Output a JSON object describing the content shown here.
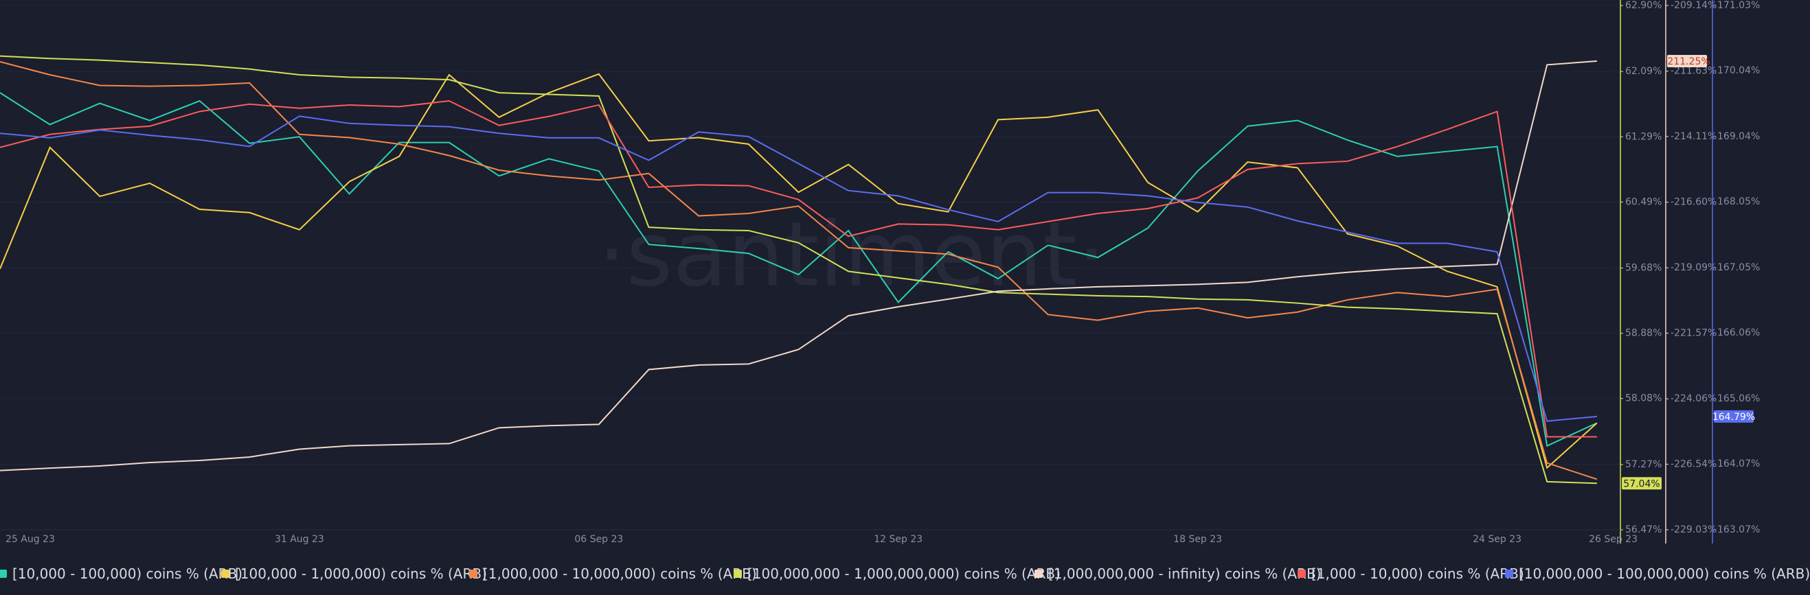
{
  "chart_data": {
    "type": "line",
    "watermark": "·santiment·",
    "x": [
      0,
      1,
      2,
      3,
      4,
      5,
      6,
      7,
      8,
      9,
      10,
      11,
      12,
      13,
      14,
      15,
      16,
      17,
      18,
      19,
      20,
      21,
      22,
      23,
      24,
      25,
      26,
      27,
      28,
      29,
      30,
      31,
      32
    ],
    "xlim": [
      0,
      32.47
    ],
    "xticks": [
      {
        "value": 0,
        "label": "25 Aug 23"
      },
      {
        "value": 6,
        "label": "31 Aug 23"
      },
      {
        "value": 12,
        "label": "06 Sep 23"
      },
      {
        "value": 18,
        "label": "12 Sep 23"
      },
      {
        "value": 24,
        "label": "18 Sep 23"
      },
      {
        "value": 30,
        "label": "24 Sep 23"
      },
      {
        "value": 32.36,
        "label": "26 Sep 23"
      }
    ],
    "ylim": [
      56.47,
      62.9
    ],
    "yticks": [
      {
        "value": 62.9,
        "label": "62.90%"
      },
      {
        "value": 62.09,
        "label": "62.09%"
      },
      {
        "value": 61.29,
        "label": "61.29%"
      },
      {
        "value": 60.49,
        "label": "60.49%"
      },
      {
        "value": 59.68,
        "label": "59.68%"
      },
      {
        "value": 58.88,
        "label": "58.88%"
      },
      {
        "value": 58.08,
        "label": "58.08%"
      },
      {
        "value": 57.27,
        "label": "57.27%"
      },
      {
        "value": 56.47,
        "label": "56.47%"
      }
    ],
    "y2lim": [
      -229.03,
      -209.14
    ],
    "y2ticks": [
      {
        "value": -209.14,
        "label": "-209.14%"
      },
      {
        "value": -211.63,
        "label": "-211.63%"
      },
      {
        "value": -214.11,
        "label": "-214.11%"
      },
      {
        "value": -216.6,
        "label": "-216.60%"
      },
      {
        "value": -219.09,
        "label": "-219.09%"
      },
      {
        "value": -221.57,
        "label": "-221.57%"
      },
      {
        "value": -224.06,
        "label": "-224.06%"
      },
      {
        "value": -226.54,
        "label": "-226.54%"
      },
      {
        "value": -229.03,
        "label": "-229.03%"
      }
    ],
    "y3lim": [
      163.07,
      171.03
    ],
    "y3ticks": [
      {
        "value": 171.03,
        "label": "171.03%"
      },
      {
        "value": 170.04,
        "label": "170.04%"
      },
      {
        "value": 169.04,
        "label": "169.04%"
      },
      {
        "value": 168.05,
        "label": "168.05%"
      },
      {
        "value": 167.05,
        "label": "167.05%"
      },
      {
        "value": 166.06,
        "label": "166.06%"
      },
      {
        "value": 165.06,
        "label": "165.06%"
      },
      {
        "value": 164.07,
        "label": "164.07%"
      },
      {
        "value": 163.07,
        "label": "163.07%"
      }
    ],
    "grid": true,
    "axis_colors": {
      "y": "#d4e157",
      "y2": "#f3d9c9",
      "y3": "#5b6ef0"
    },
    "series": [
      {
        "name": "[10,000 - 100,000) coins % (ARB)",
        "color": "#2bd1b0",
        "axis": "y",
        "values": [
          61.83,
          61.44,
          61.7,
          61.49,
          61.73,
          61.21,
          61.29,
          60.59,
          61.22,
          61.22,
          60.81,
          61.02,
          60.87,
          59.97,
          59.92,
          59.86,
          59.6,
          60.14,
          59.26,
          59.88,
          59.55,
          59.96,
          59.81,
          60.17,
          60.87,
          61.42,
          61.49,
          61.25,
          61.05,
          61.11,
          61.17,
          57.5,
          57.78
        ]
      },
      {
        "name": "[100,000  - 1,000,000) coins % (ARB)",
        "color": "#f7cf48",
        "axis": "y",
        "values": [
          59.67,
          61.16,
          60.56,
          60.72,
          60.4,
          60.36,
          60.15,
          60.74,
          61.05,
          62.05,
          61.53,
          61.83,
          62.06,
          61.24,
          61.28,
          61.2,
          60.61,
          60.95,
          60.47,
          60.37,
          61.5,
          61.53,
          61.62,
          60.73,
          60.37,
          60.98,
          60.91,
          60.1,
          59.95,
          59.64,
          59.45,
          57.23,
          57.78
        ]
      },
      {
        "name": "[1,000,000 - 10,000,000) coins % (ARB)",
        "color": "#f5874a",
        "axis": "y",
        "values": [
          62.21,
          62.05,
          61.92,
          61.91,
          61.92,
          61.95,
          61.32,
          61.28,
          61.2,
          61.06,
          60.88,
          60.81,
          60.76,
          60.84,
          60.32,
          60.35,
          60.44,
          59.93,
          59.89,
          59.85,
          59.69,
          59.11,
          59.04,
          59.15,
          59.19,
          59.07,
          59.14,
          59.29,
          59.38,
          59.33,
          59.42,
          57.29,
          57.09
        ]
      },
      {
        "name": "[100,000,000 - 1,000,000,000) coins % (ARB)",
        "color": "#d4e157",
        "axis": "y",
        "values": [
          62.28,
          62.25,
          62.23,
          62.2,
          62.17,
          62.12,
          62.05,
          62.02,
          62.01,
          61.99,
          61.83,
          61.81,
          61.79,
          60.18,
          60.15,
          60.14,
          59.99,
          59.64,
          59.56,
          59.48,
          59.38,
          59.36,
          59.34,
          59.33,
          59.3,
          59.29,
          59.25,
          59.2,
          59.18,
          59.15,
          59.12,
          57.06,
          57.04
        ],
        "value_labels": [
          null,
          null,
          null,
          null,
          null,
          null,
          null,
          null,
          null,
          null,
          null,
          null,
          null,
          null,
          null,
          null,
          null,
          null,
          null,
          null,
          null,
          null,
          null,
          null,
          null,
          null,
          null,
          null,
          null,
          null,
          null,
          null,
          "57.04%"
        ]
      },
      {
        "name": "[1,000,000,000 - infinity) coins % (ARB)",
        "color": "#f3d9c9",
        "axis": "y2",
        "values": [
          -226.78,
          -226.69,
          -226.61,
          -226.48,
          -226.4,
          -226.27,
          -225.97,
          -225.84,
          -225.8,
          -225.76,
          -225.16,
          -225.08,
          -225.03,
          -222.95,
          -222.78,
          -222.74,
          -222.19,
          -220.91,
          -220.57,
          -220.28,
          -219.98,
          -219.89,
          -219.81,
          -219.77,
          -219.72,
          -219.64,
          -219.43,
          -219.26,
          -219.13,
          -219.04,
          -218.96,
          -211.39,
          -211.25
        ],
        "value_labels": [
          null,
          null,
          null,
          null,
          null,
          null,
          null,
          null,
          null,
          null,
          null,
          null,
          null,
          null,
          null,
          null,
          null,
          null,
          null,
          null,
          null,
          null,
          null,
          null,
          null,
          null,
          null,
          null,
          null,
          null,
          null,
          null,
          "-211.25%"
        ]
      },
      {
        "name": "[1,000 - 10,000) coins % (ARB)",
        "color": "#ff5c5c",
        "axis": "y",
        "values": [
          61.16,
          61.32,
          61.38,
          61.42,
          61.6,
          61.69,
          61.64,
          61.68,
          61.66,
          61.73,
          61.43,
          61.54,
          61.68,
          60.67,
          60.7,
          60.69,
          60.52,
          60.07,
          60.22,
          60.21,
          60.15,
          60.25,
          60.35,
          60.41,
          60.54,
          60.89,
          60.96,
          60.99,
          61.17,
          61.38,
          61.6,
          57.61,
          57.61
        ]
      },
      {
        "name": "[10,000,000 - 100,000,000) coins % (ARB)",
        "color": "#5b6ef0",
        "axis": "y3",
        "values": [
          169.09,
          169.02,
          169.14,
          169.06,
          168.99,
          168.89,
          169.35,
          169.24,
          169.21,
          169.19,
          169.09,
          169.02,
          169.02,
          168.68,
          169.11,
          169.04,
          168.63,
          168.22,
          168.14,
          167.93,
          167.75,
          168.19,
          168.19,
          168.14,
          168.04,
          167.97,
          167.76,
          167.59,
          167.42,
          167.42,
          167.29,
          164.72,
          164.79
        ],
        "value_labels": [
          null,
          null,
          null,
          null,
          null,
          null,
          null,
          null,
          null,
          null,
          null,
          null,
          null,
          null,
          null,
          null,
          null,
          null,
          null,
          null,
          null,
          null,
          null,
          null,
          null,
          null,
          null,
          null,
          null,
          null,
          null,
          null,
          "164.79%"
        ]
      }
    ]
  }
}
